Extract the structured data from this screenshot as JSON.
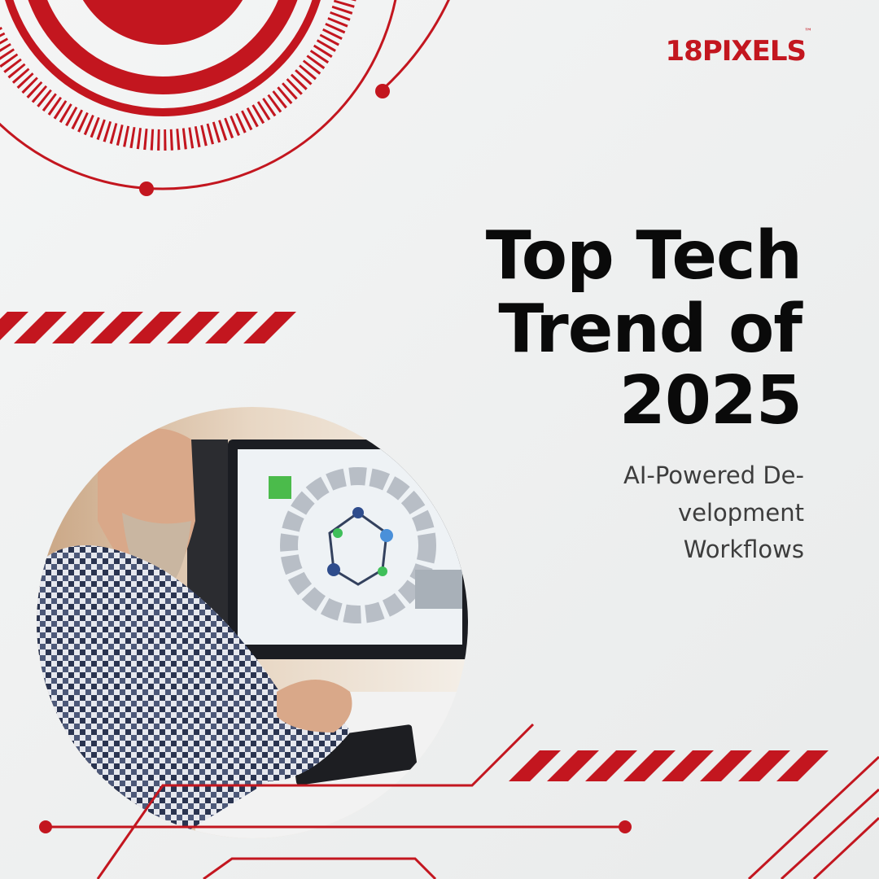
{
  "logo": {
    "text": "18PIXELS",
    "trademark": "™"
  },
  "headline": {
    "lines": [
      "Top Tech",
      "Trend of",
      "2025"
    ]
  },
  "subheadline": {
    "lines": [
      "AI-Powered De-",
      "velopment",
      "Workflows"
    ]
  }
}
